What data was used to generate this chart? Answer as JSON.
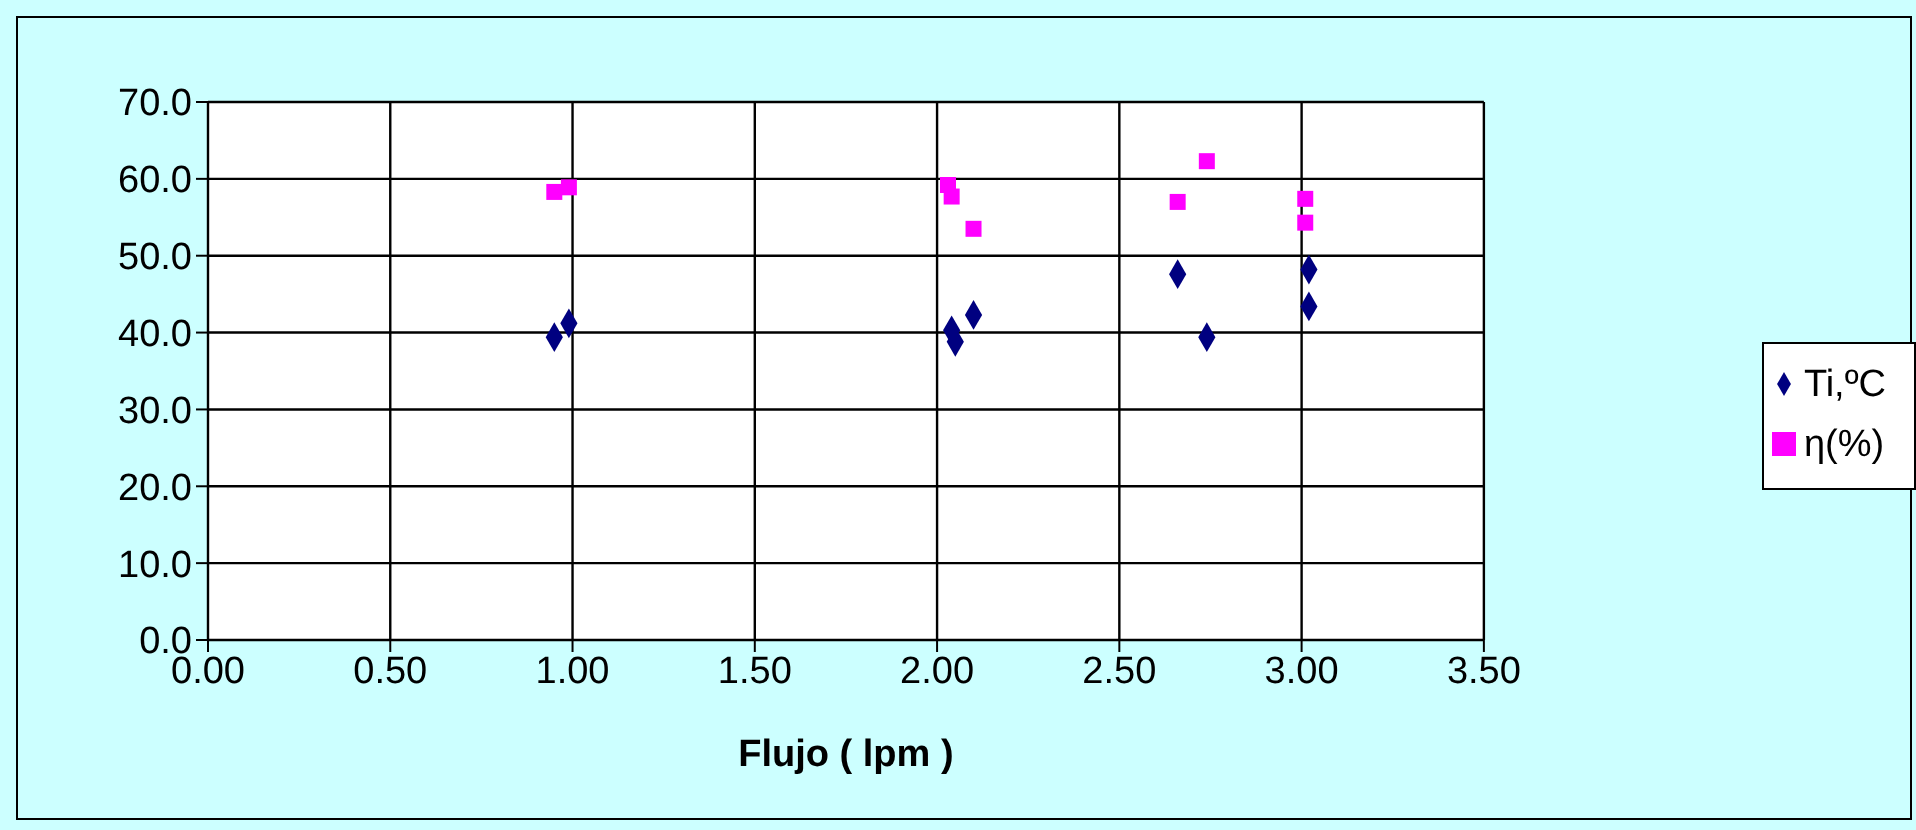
{
  "chart_data": {
    "type": "scatter",
    "xlabel": "Flujo ( lpm )",
    "xlim": [
      0,
      3.5
    ],
    "xticks": [
      {
        "value": 0,
        "label": "0.00"
      },
      {
        "value": 0.5,
        "label": "0.50"
      },
      {
        "value": 1,
        "label": "1.00"
      },
      {
        "value": 1.5,
        "label": "1.50"
      },
      {
        "value": 2,
        "label": "2.00"
      },
      {
        "value": 2.5,
        "label": "2.50"
      },
      {
        "value": 3,
        "label": "3.00"
      },
      {
        "value": 3.5,
        "label": "3.50"
      }
    ],
    "ylim": [
      0,
      70
    ],
    "yticks": [
      {
        "value": 0,
        "label": "0.0"
      },
      {
        "value": 10,
        "label": "10.0"
      },
      {
        "value": 20,
        "label": "20.0"
      },
      {
        "value": 30,
        "label": "30.0"
      },
      {
        "value": 40,
        "label": "40.0"
      },
      {
        "value": 50,
        "label": "50.0"
      },
      {
        "value": 60,
        "label": "60.0"
      },
      {
        "value": 70,
        "label": "70.0"
      }
    ],
    "grid": true,
    "legend": "right",
    "series": [
      {
        "name": "Ti,ºC",
        "color": "#000080",
        "marker": "diamond",
        "x": [
          0.95,
          0.99,
          2.04,
          2.05,
          2.1,
          2.66,
          2.74,
          3.02,
          3.02
        ],
        "values": [
          39.4,
          41.2,
          40.3,
          38.8,
          42.3,
          47.6,
          39.4,
          48.2,
          43.4
        ]
      },
      {
        "name": "η(%)",
        "color": "#ff00ff",
        "marker": "square",
        "x": [
          0.95,
          0.99,
          2.03,
          2.04,
          2.1,
          2.66,
          2.74,
          3.01,
          3.01
        ],
        "values": [
          58.3,
          58.9,
          59.2,
          57.7,
          53.5,
          57.0,
          62.3,
          57.4,
          54.3
        ]
      }
    ]
  }
}
